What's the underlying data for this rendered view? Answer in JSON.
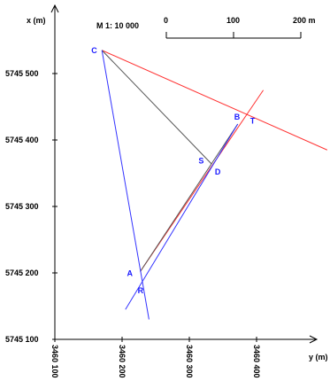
{
  "axes": {
    "x_label": "x (m)",
    "y_label": "y (m)",
    "x_ticks": [
      "5745 500",
      "5745 400",
      "5745 300",
      "5745 200",
      "5745 100"
    ],
    "x_tick_values": [
      5745500,
      5745400,
      5745300,
      5745200,
      5745100
    ],
    "y_ticks": [
      "3460 100",
      "3460 200",
      "3460 300",
      "3460 400"
    ],
    "y_tick_values": [
      3460100,
      3460200,
      3460300,
      3460400
    ]
  },
  "scale": {
    "label": "M 1: 10 000",
    "bar_labels": [
      "0",
      "100",
      "200 m"
    ]
  },
  "points": [
    {
      "name": "C",
      "y": 3460170,
      "x": 5745535
    },
    {
      "name": "B",
      "y": 3460372,
      "x": 5745424
    },
    {
      "name": "T",
      "y": 3460380,
      "x": 5745425
    },
    {
      "name": "S",
      "y": 3460332,
      "x": 5745362
    },
    {
      "name": "D",
      "y": 3460334,
      "x": 5745360
    },
    {
      "name": "A",
      "y": 3460227,
      "x": 5745202
    },
    {
      "name": "R",
      "y": 3460218,
      "x": 5745171
    }
  ],
  "lines": [
    {
      "name": "line-c-t-red",
      "color": "#ff3333",
      "from": [
        3460170,
        5745535
      ],
      "to": [
        3460505,
        5745385
      ]
    },
    {
      "name": "line-a-r-red",
      "color": "#ff3333",
      "from": [
        3460227,
        5745202
      ],
      "to": [
        3460410,
        5745475
      ]
    },
    {
      "name": "line-c-s-black",
      "color": "#555555",
      "from": [
        3460170,
        5745535
      ],
      "to": [
        3460333,
        5745364
      ]
    },
    {
      "name": "line-a-b-black",
      "color": "#555555",
      "from": [
        3460227,
        5745202
      ],
      "to": [
        3460372,
        5745424
      ]
    },
    {
      "name": "line-c-r-blue",
      "color": "#3333ff",
      "from": [
        3460170,
        5745535
      ],
      "to": [
        3460240,
        5745130
      ]
    },
    {
      "name": "line-r-b-blue",
      "color": "#3333ff",
      "from": [
        3460205,
        5745145
      ],
      "to": [
        3460372,
        5745424
      ]
    }
  ],
  "colors": {
    "red": "#ff3333",
    "blue": "#3333ff",
    "black": "#555555"
  }
}
